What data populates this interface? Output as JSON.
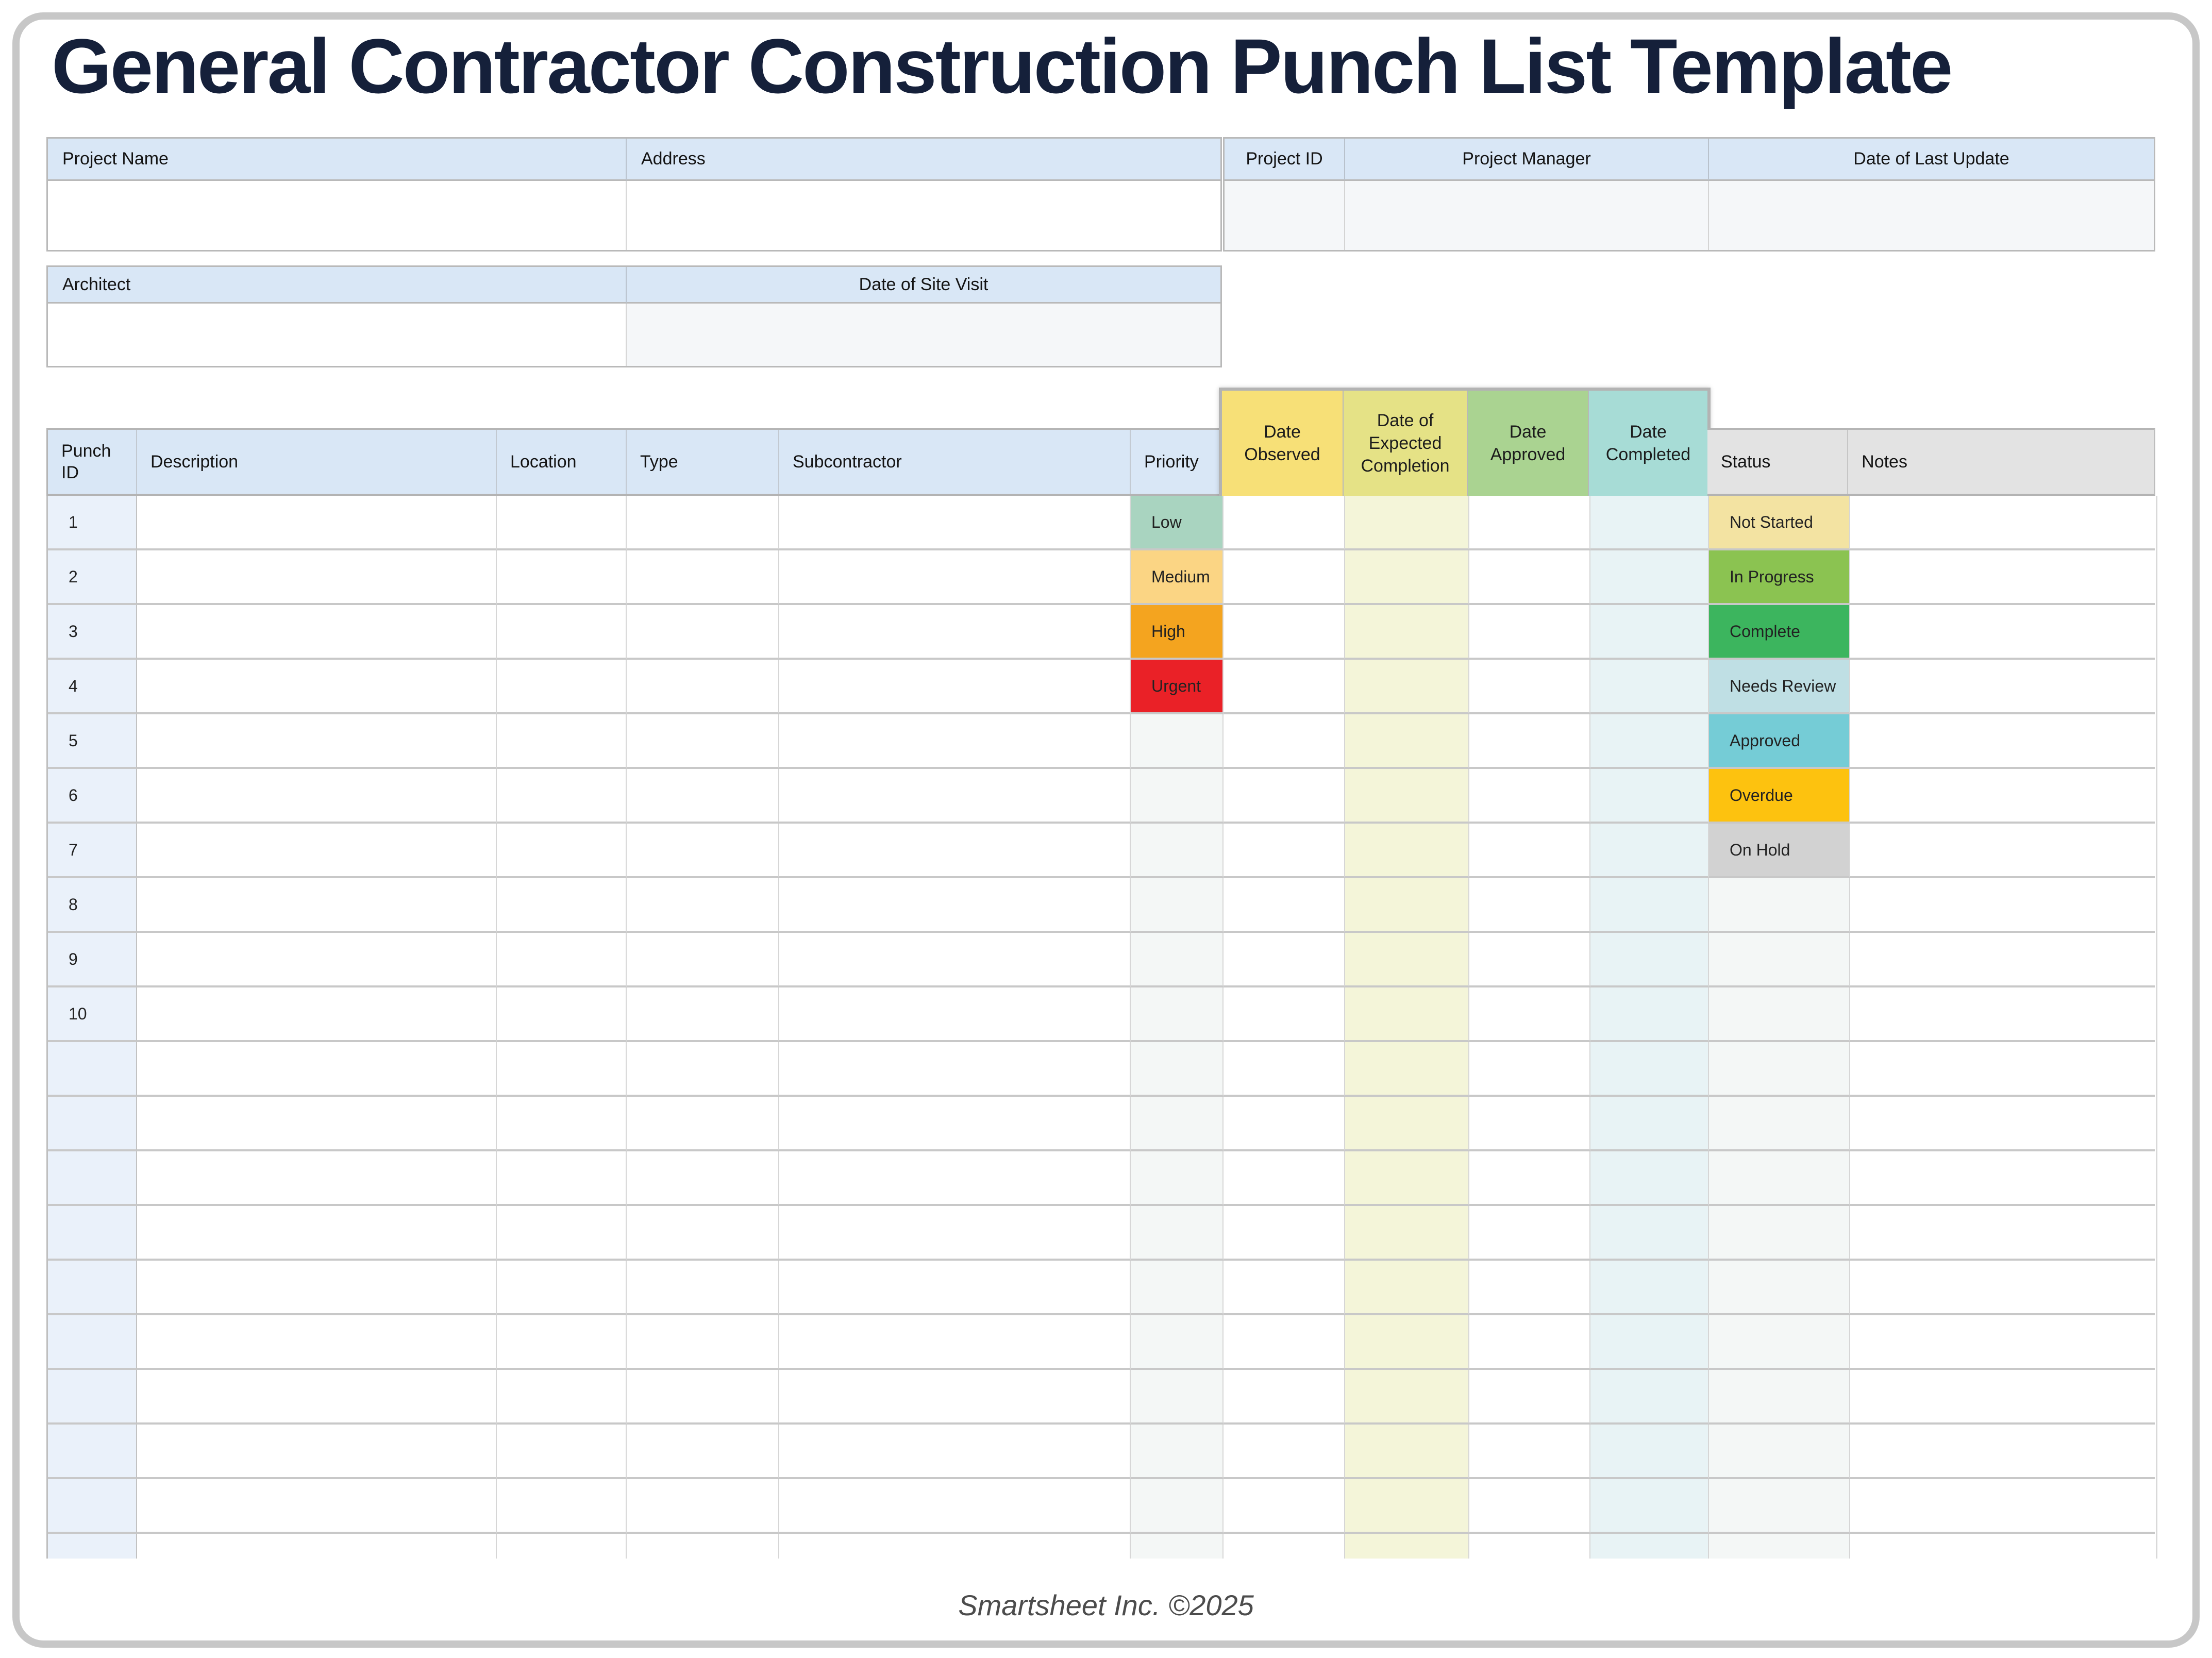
{
  "title": "General Contractor Construction Punch List Template",
  "footer": "Smartsheet Inc. ©2025",
  "info": {
    "project_name_label": "Project Name",
    "project_name_value": "",
    "address_label": "Address",
    "address_value": "",
    "project_id_label": "Project ID",
    "project_id_value": "",
    "project_manager_label": "Project Manager",
    "project_manager_value": "",
    "date_of_last_update_label": "Date of Last Update",
    "date_of_last_update_value": "",
    "architect_label": "Architect",
    "architect_value": "",
    "date_of_site_visit_label": "Date of Site Visit",
    "date_of_site_visit_value": ""
  },
  "table": {
    "headers": {
      "punch_id": "Punch ID",
      "description": "Description",
      "location": "Location",
      "type": "Type",
      "subcontractor": "Subcontractor",
      "priority": "Priority",
      "date_observed": "Date Observed",
      "date_expected": "Date of Expected Completion",
      "date_approved": "Date Approved",
      "date_completed": "Date Completed",
      "status": "Status",
      "notes": "Notes"
    },
    "punch_ids": [
      "1",
      "2",
      "3",
      "4",
      "5",
      "6",
      "7",
      "8",
      "9",
      "10"
    ],
    "priority_options": [
      {
        "label": "Low",
        "bg": "#a9d4c0"
      },
      {
        "label": "Medium",
        "bg": "#fbd584"
      },
      {
        "label": "High",
        "bg": "#f4a41f"
      },
      {
        "label": "Urgent",
        "bg": "#ea2127"
      }
    ],
    "status_options": [
      {
        "label": "Not Started",
        "bg": "#f3e3a2"
      },
      {
        "label": "In Progress",
        "bg": "#8bc351"
      },
      {
        "label": "Complete",
        "bg": "#3cb55e"
      },
      {
        "label": "Needs Review",
        "bg": "#bfdfe4"
      },
      {
        "label": "Approved",
        "bg": "#75ccd6"
      },
      {
        "label": "Overdue",
        "bg": "#fdc20f"
      },
      {
        "label": "On Hold",
        "bg": "#d2d2d2"
      }
    ],
    "date_header_colors": {
      "date_observed": "#f7e077",
      "date_expected": "#e5e286",
      "date_approved": "#aad391",
      "date_completed": "#a7dcd6"
    },
    "visible_row_count": 20
  },
  "colors": {
    "title_navy": "#15203a",
    "header_blue": "#d9e7f6",
    "header_gray": "#e3e3e3",
    "punch_col_bg": "#eaf1fa",
    "dropdown_tint": "#f4f7f6",
    "expected_col_tint": "#f4f5d9",
    "completed_col_tint": "#e8f3f5",
    "value_cell_gray": "#f5f7f9",
    "card_border": "#c7c7c7"
  }
}
